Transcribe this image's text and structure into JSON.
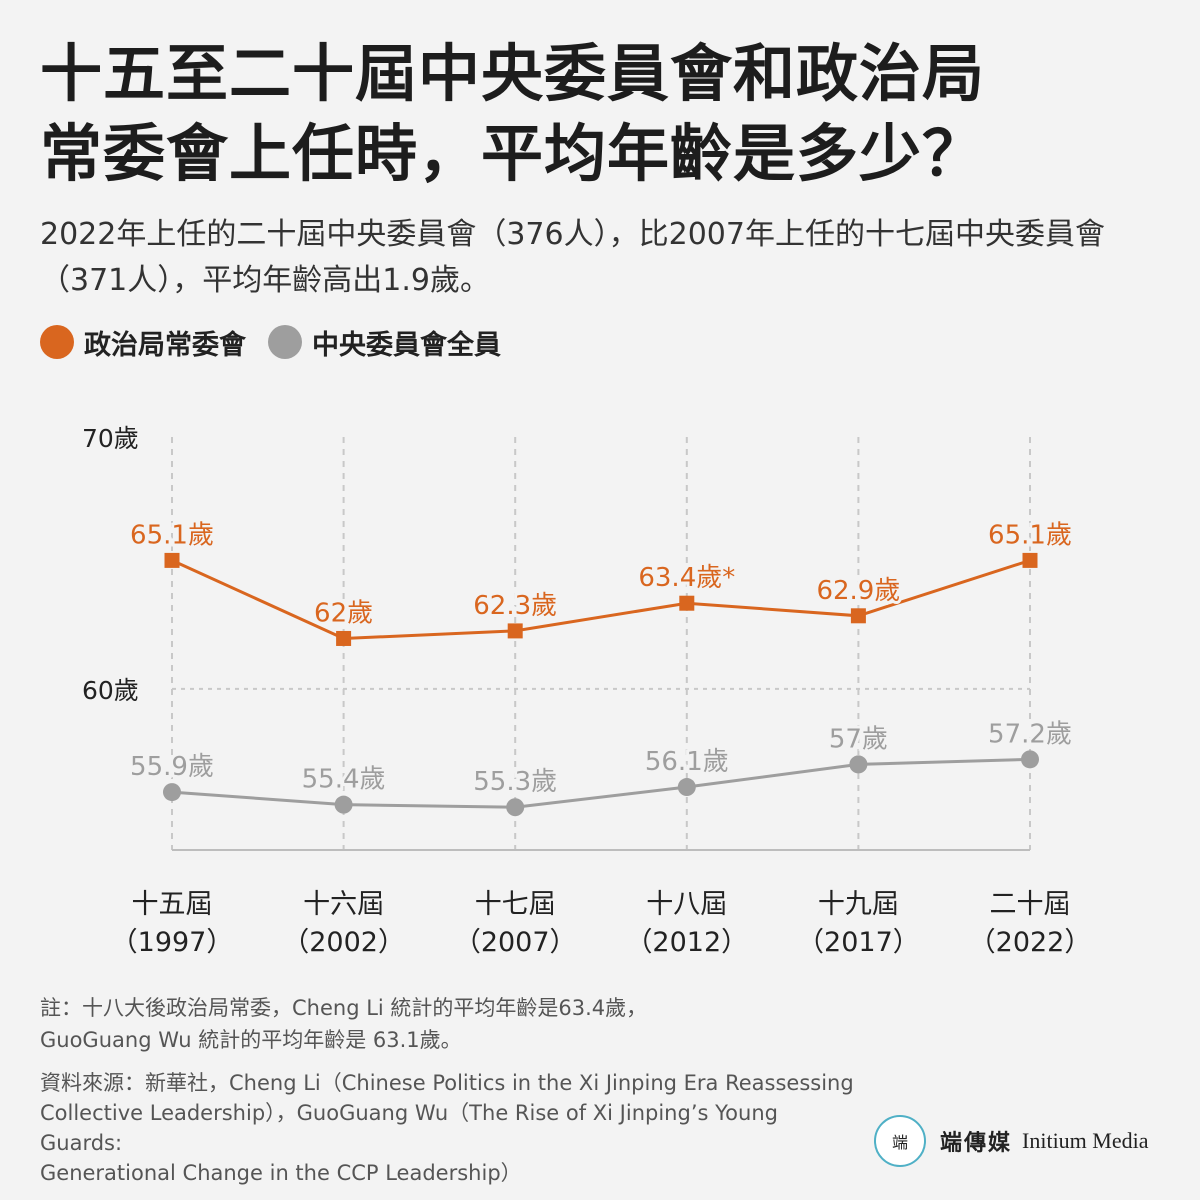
{
  "title_lines": [
    "十五至二十屆中央委員會和政治局",
    "常委會上任時，平均年齡是多少？"
  ],
  "subtitle": "2022年上任的二十屆中央委員會（376人），比2007年上任的十七屆中央委員會（371人），平均年齡高出1.9歲。",
  "legend": [
    {
      "label": "政治局常委會",
      "color": "#d9661f"
    },
    {
      "label": "中央委員會全員",
      "color": "#9e9e9e"
    }
  ],
  "chart_data": {
    "type": "line",
    "categories": [
      {
        "name": "十五屆",
        "year": "（1997）"
      },
      {
        "name": "十六屆",
        "year": "（2002）"
      },
      {
        "name": "十七屆",
        "year": "（2007）"
      },
      {
        "name": "十八屆",
        "year": "（2012）"
      },
      {
        "name": "十九屆",
        "year": "（2017）"
      },
      {
        "name": "二十屆",
        "year": "（2022）"
      }
    ],
    "y_ticks": [
      {
        "value": 70,
        "label": "70歲"
      },
      {
        "value": 60,
        "label": "60歲"
      }
    ],
    "ylim": [
      53.6,
      70
    ],
    "grid_vertical": true,
    "series": [
      {
        "name": "政治局常委會",
        "color": "#d9661f",
        "marker": "square",
        "values": [
          65.1,
          62,
          62.3,
          63.4,
          62.9,
          65.1
        ],
        "labels": [
          "65.1歲",
          "62歲",
          "62.3歲",
          "63.4歲*",
          "62.9歲",
          "65.1歲"
        ]
      },
      {
        "name": "中央委員會全員",
        "color": "#9e9e9e",
        "marker": "circle",
        "values": [
          55.9,
          55.4,
          55.3,
          56.1,
          57,
          57.2
        ],
        "labels": [
          "55.9歲",
          "55.4歲",
          "55.3歲",
          "56.1歲",
          "57歲",
          "57.2歲"
        ]
      }
    ]
  },
  "note_lines": [
    "註：十八大後政治局常委，Cheng Li 統計的平均年齡是63.4歲，",
    "GuoGuang Wu 統計的平均年齡是 63.1歲。"
  ],
  "source_lines": [
    "資料來源：新華社，Cheng Li（Chinese Politics in the Xi Jinping Era Reassessing",
    "Collective Leadership），GuoGuang Wu（The Rise of Xi Jinping’s Young Guards:",
    "Generational Change in the CCP Leadership）"
  ],
  "brand": {
    "logo_text": "端",
    "name_cn": "端傳媒",
    "name_en": "Initium Media"
  }
}
